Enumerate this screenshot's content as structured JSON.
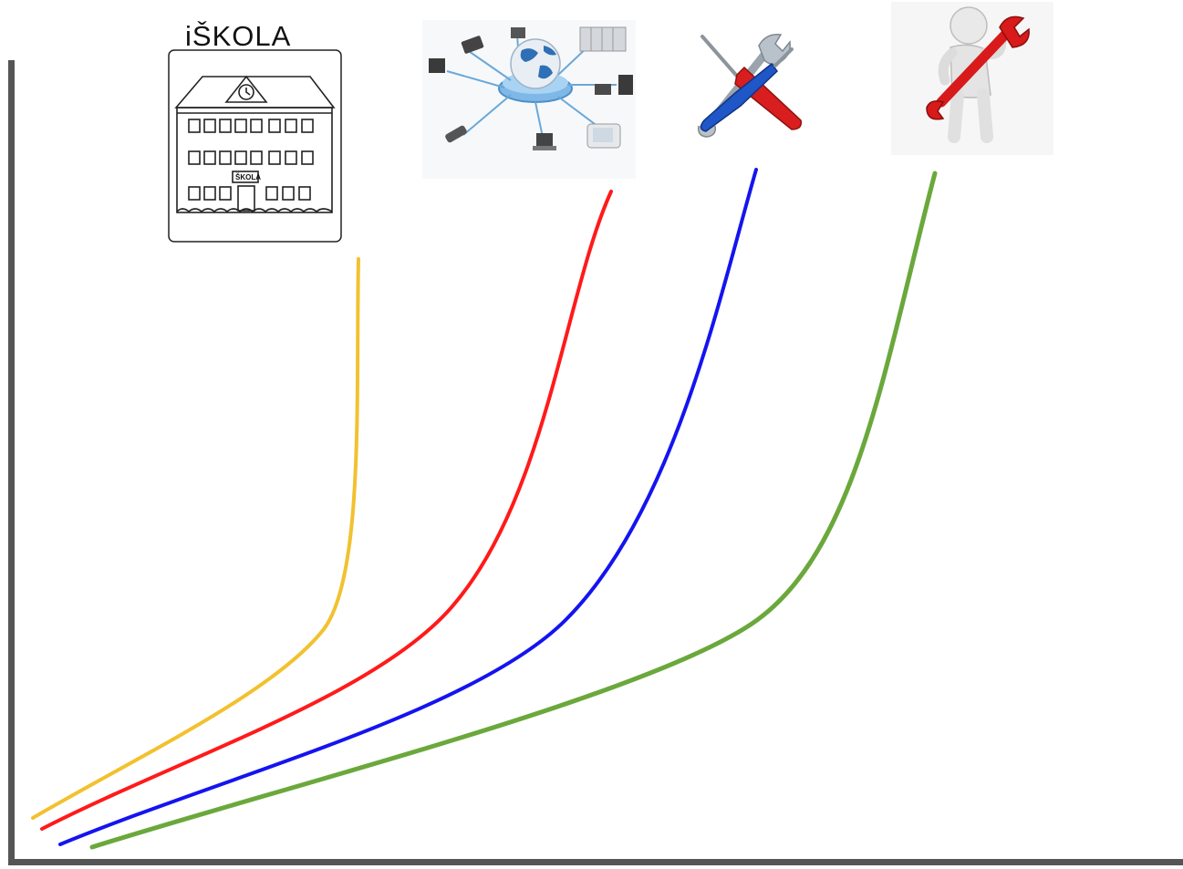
{
  "school": {
    "caption": "iŠKOLA",
    "sign": "ŠKOLA"
  },
  "icons": [
    {
      "name": "school-building-icon"
    },
    {
      "name": "computer-network-icon"
    },
    {
      "name": "screwdriver-wrench-icon"
    },
    {
      "name": "person-with-wrench-icon"
    }
  ],
  "curves": [
    {
      "name": "curve-school",
      "color": "#F2C12E"
    },
    {
      "name": "curve-network",
      "color": "#FF1A1A"
    },
    {
      "name": "curve-tools",
      "color": "#1414F0"
    },
    {
      "name": "curve-support",
      "color": "#6BA83C"
    }
  ],
  "axis_color": "#555555"
}
